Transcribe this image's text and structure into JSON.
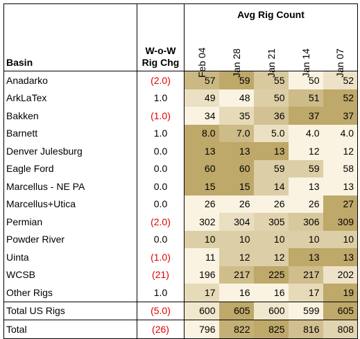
{
  "headers": {
    "basin": "Basin",
    "wow_line1": "W-o-W",
    "wow_line2": "Rig Chg",
    "avg": "Avg Rig Count",
    "dates": [
      "Feb 04",
      "Jan 28",
      "Jan 21",
      "Jan 14",
      "Jan 07"
    ]
  },
  "colors": {
    "negative_text": "#e00000",
    "heat_low": "#faf3e1",
    "heat_high": "#bea86a"
  },
  "rows": [
    {
      "basin": "Anadarko",
      "wow": "(2.0)",
      "neg": true,
      "values": [
        "57",
        "59",
        "55",
        "50",
        "52"
      ]
    },
    {
      "basin": "ArkLaTex",
      "wow": "1.0",
      "neg": false,
      "values": [
        "49",
        "48",
        "50",
        "51",
        "52"
      ]
    },
    {
      "basin": "Bakken",
      "wow": "(1.0)",
      "neg": true,
      "values": [
        "34",
        "35",
        "36",
        "37",
        "37"
      ]
    },
    {
      "basin": "Barnett",
      "wow": "1.0",
      "neg": false,
      "values": [
        "8.0",
        "7.0",
        "5.0",
        "4.0",
        "4.0"
      ]
    },
    {
      "basin": "Denver Julesburg",
      "wow": "0.0",
      "neg": false,
      "values": [
        "13",
        "13",
        "13",
        "12",
        "12"
      ]
    },
    {
      "basin": "Eagle Ford",
      "wow": "0.0",
      "neg": false,
      "values": [
        "60",
        "60",
        "59",
        "59",
        "58"
      ]
    },
    {
      "basin": "Marcellus - NE PA",
      "wow": "0.0",
      "neg": false,
      "values": [
        "15",
        "15",
        "14",
        "13",
        "13"
      ]
    },
    {
      "basin": "Marcellus+Utica",
      "wow": "0.0",
      "neg": false,
      "values": [
        "26",
        "26",
        "26",
        "26",
        "27"
      ]
    },
    {
      "basin": "Permian",
      "wow": "(2.0)",
      "neg": true,
      "values": [
        "302",
        "304",
        "305",
        "306",
        "309"
      ]
    },
    {
      "basin": "Powder River",
      "wow": "0.0",
      "neg": false,
      "values": [
        "10",
        "10",
        "10",
        "10",
        "10"
      ]
    },
    {
      "basin": "Uinta",
      "wow": "(1.0)",
      "neg": true,
      "values": [
        "11",
        "12",
        "12",
        "13",
        "13"
      ]
    },
    {
      "basin": "WCSB",
      "wow": "(21)",
      "neg": true,
      "values": [
        "196",
        "217",
        "225",
        "217",
        "202"
      ]
    },
    {
      "basin": "Other Rigs",
      "wow": "1.0",
      "neg": false,
      "values": [
        "17",
        "16",
        "16",
        "17",
        "19"
      ]
    }
  ],
  "total_us": {
    "basin": "Total US Rigs",
    "wow": "(5.0)",
    "neg": true,
    "values": [
      "600",
      "605",
      "600",
      "599",
      "605"
    ]
  },
  "total": {
    "basin": "Total",
    "wow": "(26)",
    "neg": true,
    "values": [
      "796",
      "822",
      "825",
      "816",
      "808"
    ]
  }
}
